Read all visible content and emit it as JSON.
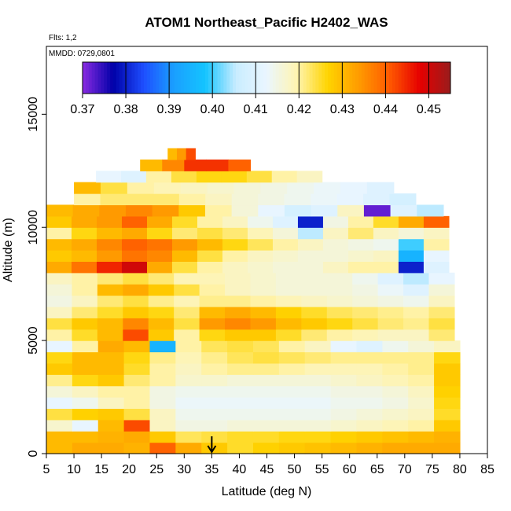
{
  "chart_data": {
    "type": "heatmap",
    "title": "ATOM1 Northeast_Pacific H2402_WAS",
    "flights_note": "Flts: 1,2",
    "date_note": "MMDD: 0729,0801",
    "xlabel": "Latitude (deg N)",
    "ylabel": "Altitude (m)",
    "xlim": [
      5,
      85
    ],
    "ylim": [
      0,
      18000
    ],
    "x_ticks": [
      "5",
      "10",
      "15",
      "20",
      "25",
      "30",
      "35",
      "40",
      "45",
      "50",
      "55",
      "60",
      "65",
      "70",
      "75",
      "80",
      "85"
    ],
    "y_ticks": [
      "0",
      "5000",
      "10000",
      "15000"
    ],
    "colorbar": {
      "range": [
        0.37,
        0.455
      ],
      "tick_labels": [
        "0.37",
        "0.38",
        "0.39",
        "0.40",
        "0.41",
        "0.42",
        "0.43",
        "0.44",
        "0.45"
      ],
      "colors": [
        "#8a2be2",
        "#0000a8",
        "#1e4fff",
        "#1aa0ff",
        "#14c4ff",
        "#c8ecff",
        "#eaf6ff",
        "#fff4b0",
        "#ffd400",
        "#ff9c00",
        "#ff5a00",
        "#e60000",
        "#9a1c1c"
      ]
    },
    "marker": {
      "label": "arrow",
      "latitude": 35
    },
    "layers": [
      {
        "alt": 0,
        "lat_min": 5,
        "lat_max": 80,
        "values": [
          0.43,
          0.432,
          0.432,
          0.431,
          0.44,
          0.432,
          0.428,
          0.425,
          0.427,
          0.428,
          0.429,
          0.43,
          0.431,
          0.432,
          0.432,
          0.432
        ]
      },
      {
        "alt": 500,
        "lat_min": 5,
        "lat_max": 80,
        "values": [
          0.43,
          0.43,
          0.431,
          0.432,
          0.428,
          0.423,
          0.424,
          0.425,
          0.425,
          0.426,
          0.426,
          0.427,
          0.428,
          0.429,
          0.43,
          0.431
        ]
      },
      {
        "alt": 1000,
        "lat_min": 5,
        "lat_max": 80,
        "values": [
          0.417,
          0.412,
          0.43,
          0.442,
          0.418,
          0.415,
          0.415,
          0.416,
          0.416,
          0.416,
          0.416,
          0.417,
          0.418,
          0.419,
          0.42,
          0.428
        ]
      },
      {
        "alt": 1500,
        "lat_min": 5,
        "lat_max": 80,
        "values": [
          0.424,
          0.427,
          0.428,
          0.424,
          0.418,
          0.414,
          0.414,
          0.414,
          0.414,
          0.414,
          0.414,
          0.415,
          0.416,
          0.417,
          0.418,
          0.425
        ]
      },
      {
        "alt": 2000,
        "lat_min": 5,
        "lat_max": 80,
        "values": [
          0.412,
          0.414,
          0.418,
          0.42,
          0.415,
          0.413,
          0.413,
          0.413,
          0.413,
          0.413,
          0.413,
          0.414,
          0.414,
          0.415,
          0.417,
          0.426
        ]
      },
      {
        "alt": 2500,
        "lat_min": 5,
        "lat_max": 80,
        "values": [
          0.416,
          0.418,
          0.42,
          0.42,
          0.415,
          0.414,
          0.414,
          0.414,
          0.414,
          0.414,
          0.414,
          0.415,
          0.415,
          0.416,
          0.418,
          0.427
        ]
      },
      {
        "alt": 3000,
        "lat_min": 5,
        "lat_max": 80,
        "values": [
          0.421,
          0.426,
          0.428,
          0.422,
          0.42,
          0.417,
          0.417,
          0.416,
          0.416,
          0.416,
          0.416,
          0.417,
          0.418,
          0.419,
          0.42,
          0.428
        ]
      },
      {
        "alt": 3500,
        "lat_min": 5,
        "lat_max": 80,
        "values": [
          0.428,
          0.43,
          0.43,
          0.425,
          0.42,
          0.418,
          0.42,
          0.421,
          0.421,
          0.42,
          0.419,
          0.419,
          0.419,
          0.42,
          0.421,
          0.428
        ]
      },
      {
        "alt": 4000,
        "lat_min": 5,
        "lat_max": 80,
        "values": [
          0.426,
          0.43,
          0.43,
          0.426,
          0.421,
          0.419,
          0.421,
          0.423,
          0.424,
          0.423,
          0.422,
          0.421,
          0.421,
          0.421,
          0.421,
          0.426
        ]
      },
      {
        "alt": 4500,
        "lat_min": 5,
        "lat_max": 80,
        "values": [
          0.412,
          0.42,
          0.432,
          0.43,
          0.395,
          0.42,
          0.423,
          0.424,
          0.423,
          0.42,
          0.418,
          0.412,
          0.41,
          0.414,
          0.416,
          0.418
        ]
      },
      {
        "alt": 5000,
        "lat_min": 5,
        "lat_max": 79,
        "values": [
          0.42,
          0.425,
          0.43,
          0.442,
          0.428,
          0.42,
          0.426,
          0.428,
          0.428,
          0.425,
          0.422,
          0.42,
          0.419,
          0.418,
          0.418,
          0.422
        ]
      },
      {
        "alt": 5500,
        "lat_min": 5,
        "lat_max": 79,
        "values": [
          0.424,
          0.428,
          0.43,
          0.436,
          0.43,
          0.424,
          0.434,
          0.436,
          0.434,
          0.43,
          0.428,
          0.426,
          0.424,
          0.422,
          0.421,
          0.424
        ]
      },
      {
        "alt": 6000,
        "lat_min": 5,
        "lat_max": 79,
        "values": [
          0.418,
          0.422,
          0.425,
          0.428,
          0.426,
          0.422,
          0.43,
          0.432,
          0.43,
          0.427,
          0.425,
          0.423,
          0.422,
          0.421,
          0.42,
          0.422
        ]
      },
      {
        "alt": 6500,
        "lat_min": 5,
        "lat_max": 79,
        "values": [
          0.415,
          0.418,
          0.422,
          0.424,
          0.421,
          0.419,
          0.421,
          0.421,
          0.42,
          0.419,
          0.418,
          0.417,
          0.416,
          0.415,
          0.414,
          0.418
        ]
      },
      {
        "alt": 7000,
        "lat_min": 5,
        "lat_max": 79,
        "values": [
          0.416,
          0.42,
          0.43,
          0.432,
          0.428,
          0.424,
          0.42,
          0.418,
          0.417,
          0.416,
          0.416,
          0.416,
          0.415,
          0.413,
          0.41,
          0.416
        ]
      },
      {
        "alt": 7500,
        "lat_min": 5,
        "lat_max": 79,
        "values": [
          0.418,
          0.42,
          0.422,
          0.424,
          0.422,
          0.419,
          0.419,
          0.418,
          0.417,
          0.416,
          0.416,
          0.416,
          0.414,
          0.41,
          0.405,
          0.412
        ]
      },
      {
        "alt": 8000,
        "lat_min": 5,
        "lat_max": 78,
        "values": [
          0.432,
          0.438,
          0.445,
          0.45,
          0.432,
          0.424,
          0.42,
          0.418,
          0.417,
          0.416,
          0.416,
          0.418,
          0.42,
          0.42,
          0.38,
          0.41
        ]
      },
      {
        "alt": 8500,
        "lat_min": 5,
        "lat_max": 78,
        "values": [
          0.428,
          0.43,
          0.434,
          0.438,
          0.436,
          0.43,
          0.424,
          0.42,
          0.418,
          0.417,
          0.416,
          0.416,
          0.417,
          0.418,
          0.395,
          0.412
        ]
      },
      {
        "alt": 9000,
        "lat_min": 5,
        "lat_max": 78,
        "values": [
          0.43,
          0.432,
          0.436,
          0.44,
          0.438,
          0.434,
          0.43,
          0.426,
          0.423,
          0.42,
          0.418,
          0.416,
          0.415,
          0.414,
          0.4,
          0.42
        ]
      },
      {
        "alt": 9500,
        "lat_min": 5,
        "lat_max": 78,
        "values": [
          0.42,
          0.426,
          0.43,
          0.432,
          0.426,
          0.422,
          0.424,
          0.422,
          0.419,
          0.416,
          0.405,
          0.418,
          0.422,
          0.418,
          0.416,
          0.418
        ]
      },
      {
        "alt": 10000,
        "lat_min": 5,
        "lat_max": 78,
        "values": [
          0.428,
          0.432,
          0.434,
          0.44,
          0.432,
          0.425,
          0.42,
          0.418,
          0.414,
          0.41,
          0.38,
          0.415,
          0.42,
          0.425,
          0.432,
          0.44
        ]
      },
      {
        "alt": 10500,
        "lat_min": 5,
        "lat_max": 77,
        "values": [
          0.43,
          0.432,
          0.434,
          0.436,
          0.434,
          0.428,
          0.42,
          0.416,
          0.412,
          0.408,
          0.41,
          0.418,
          0.372,
          0.41,
          0.405
        ]
      },
      {
        "alt": 11000,
        "lat_min": 10,
        "lat_max": 72,
        "values": [
          0.42,
          0.422,
          0.422,
          0.422,
          0.42,
          0.418,
          0.416,
          0.415,
          0.414,
          0.413,
          0.412,
          0.41,
          0.408
        ]
      },
      {
        "alt": 11500,
        "lat_min": 10,
        "lat_max": 68,
        "values": [
          0.43,
          0.424,
          0.42,
          0.419,
          0.418,
          0.417,
          0.416,
          0.415,
          0.414,
          0.413,
          0.412,
          0.41
        ]
      },
      {
        "alt": 12000,
        "lat_min": 14,
        "lat_max": 55,
        "values": [
          0.412,
          0.41,
          0.42,
          0.424,
          0.426,
          0.426,
          0.424,
          0.42,
          0.418
        ]
      },
      {
        "alt": 12500,
        "lat_min": 22,
        "lat_max": 42,
        "values": [
          0.43,
          0.436,
          0.444,
          0.444,
          0.44
        ]
      },
      {
        "alt": 13000,
        "lat_min": 27,
        "lat_max": 32,
        "values": [
          0.43,
          0.434,
          0.442
        ]
      }
    ]
  }
}
